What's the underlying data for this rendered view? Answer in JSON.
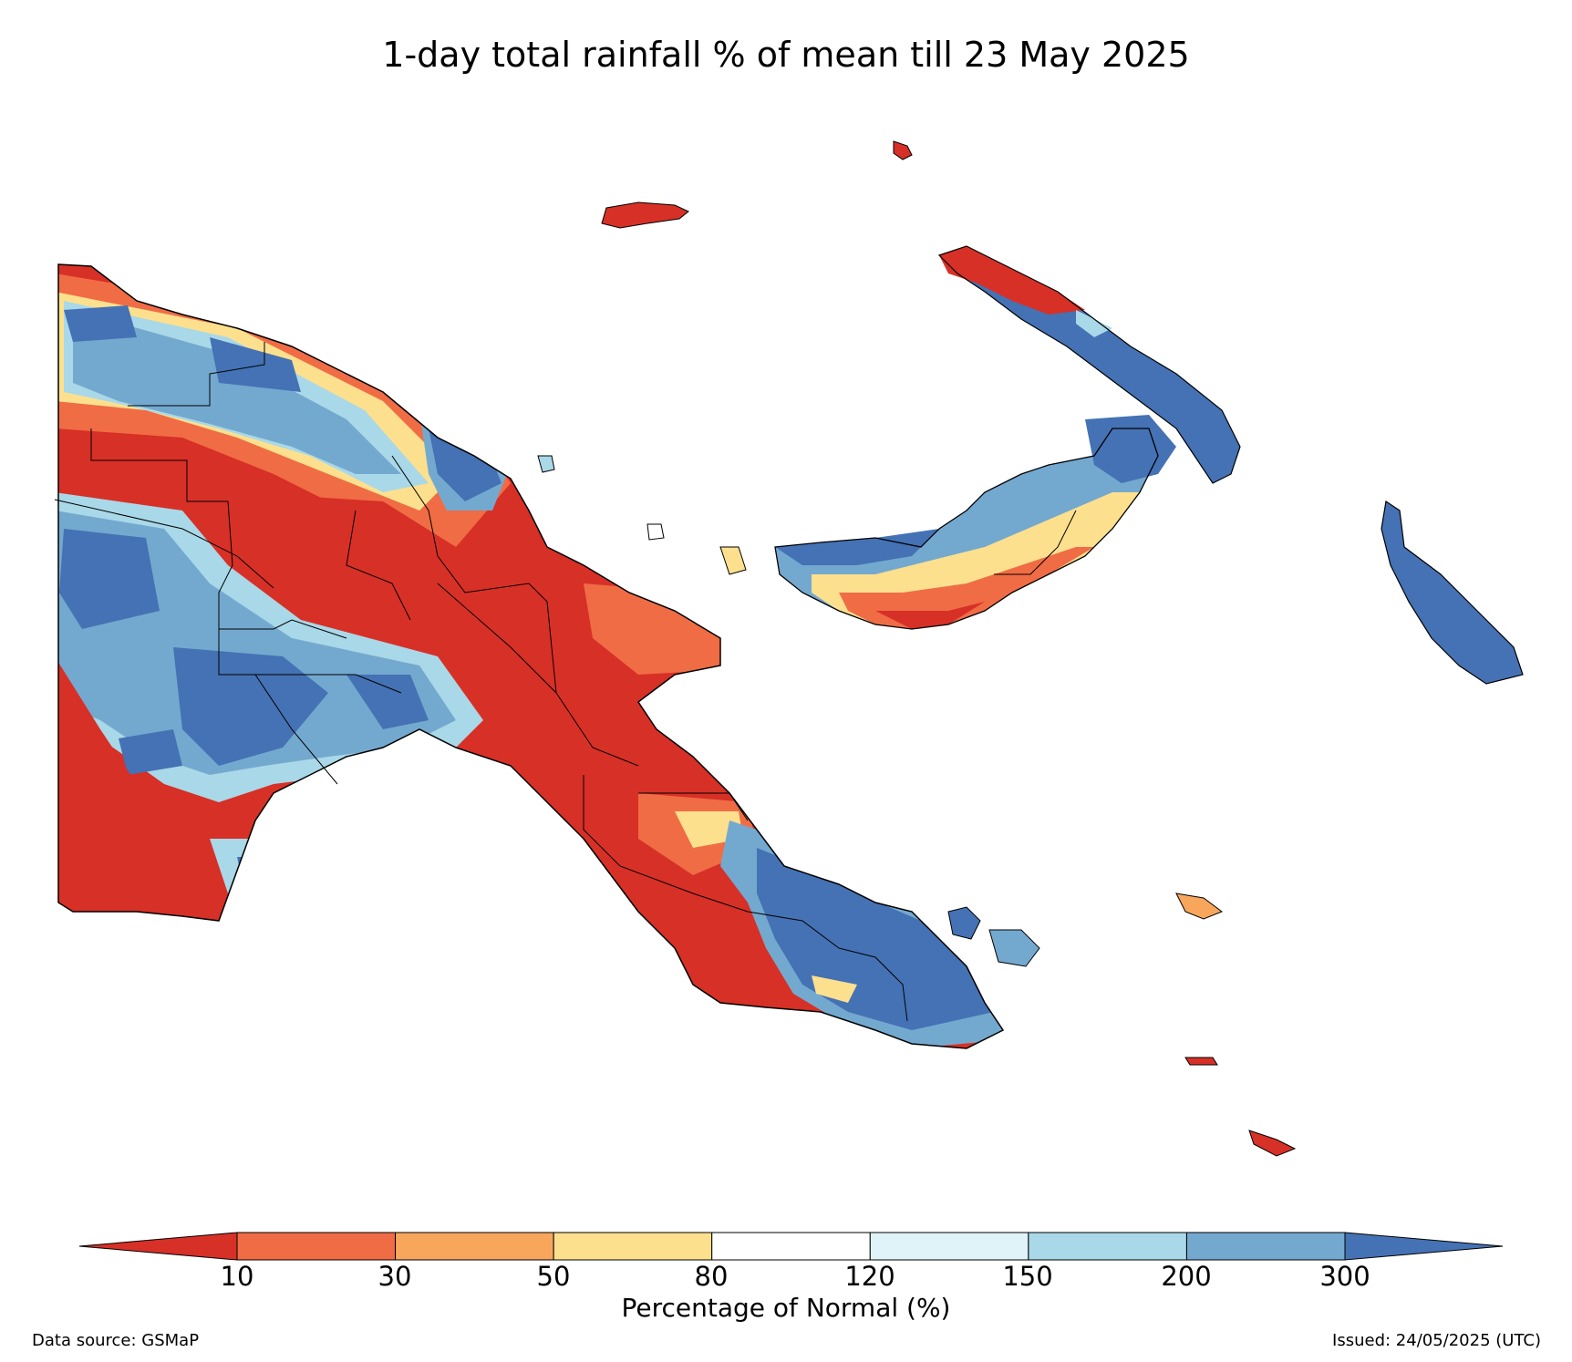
{
  "title": "1-day total rainfall % of mean till 23 May 2025",
  "colorbar": {
    "title": "Percentage of Normal (%)",
    "tick_labels": [
      "10",
      "30",
      "50",
      "80",
      "120",
      "150",
      "200",
      "300"
    ],
    "colors": [
      "#d73027",
      "#f06c45",
      "#f8a65c",
      "#fde08e",
      "#ffffff",
      "#e0f3f8",
      "#a9d8e8",
      "#74a9cf",
      "#4472b4"
    ]
  },
  "footer": {
    "source": "Data source: GSMaP",
    "issued": "Issued: 24/05/2025 (UTC)"
  },
  "legend_colors": {
    "below_10": "#d73027",
    "above_300": "#4472b4",
    "boundary": "#000000"
  }
}
